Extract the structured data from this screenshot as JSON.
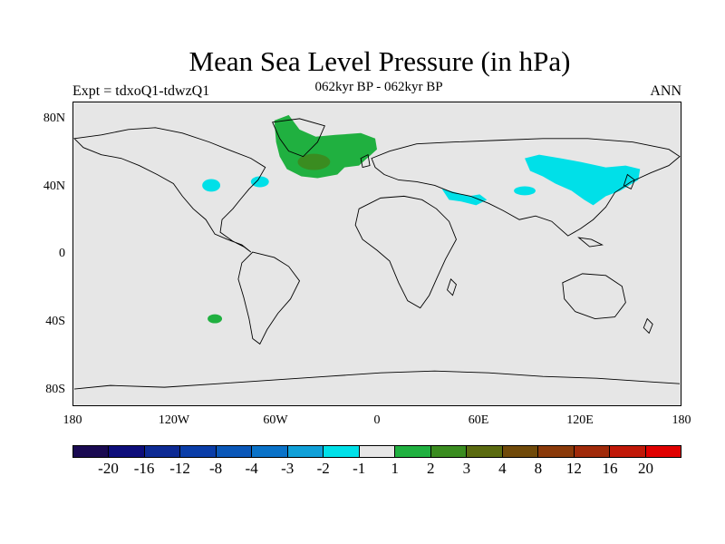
{
  "header": {
    "title": "Mean Sea Level Pressure (in hPa)",
    "subtitle": "062kyr BP - 062kyr BP",
    "left_label": "Expt = tdxoQ1-tdwzQ1",
    "right_label": "ANN"
  },
  "map": {
    "lat_ticks": [
      "80N",
      "40N",
      "0",
      "40S",
      "80S"
    ],
    "lon_ticks": [
      "180",
      "120W",
      "60W",
      "0",
      "60E",
      "120E",
      "180"
    ],
    "background_color": "#e6e6e6",
    "coastline_color": "#000000"
  },
  "colorbar": {
    "colors": [
      "#1a0a52",
      "#0d0d7a",
      "#0d2a94",
      "#0a3da8",
      "#0a57b8",
      "#0a72c8",
      "#10a0d8",
      "#00e0e8",
      "#e6e6e6",
      "#20b040",
      "#3a8c20",
      "#5a6a10",
      "#704a0a",
      "#8a3a0a",
      "#a02a0a",
      "#c01808",
      "#e00000"
    ],
    "labels": [
      "-20",
      "-16",
      "-12",
      "-8",
      "-4",
      "-3",
      "-2",
      "-1",
      "1",
      "2",
      "3",
      "4",
      "8",
      "12",
      "16",
      "20"
    ]
  }
}
